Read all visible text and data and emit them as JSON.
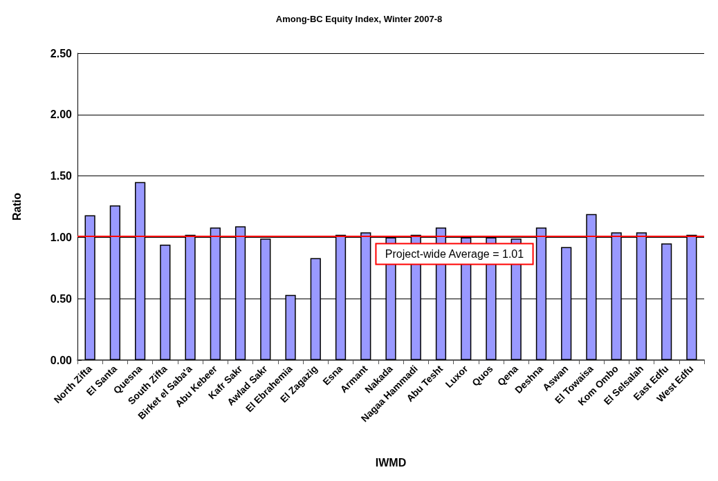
{
  "chart_data": {
    "type": "bar",
    "title": "Among-BC Equity Index, Winter 2007-8",
    "xlabel": "IWMD",
    "ylabel": "Ratio",
    "categories": [
      "North Zifta",
      "El Santa",
      "Quesna",
      "South Zifta",
      "Birket el Saba'a",
      "Abu Kebeer",
      "Kafr Sakr",
      "Awlad Sakr",
      "El Ebrahemia",
      "El Zagazig",
      "Esna",
      "Armant",
      "Nakada",
      "Nagaa Hammadi",
      "Abu Tesht",
      "Luxor",
      "Quos",
      "Qena",
      "Deshna",
      "Aswan",
      "El Towaisa",
      "Kom Ombo",
      "El Selsalah",
      "East Edfu",
      "West Edfu"
    ],
    "values": [
      1.18,
      1.26,
      1.45,
      0.94,
      1.02,
      1.08,
      1.09,
      0.99,
      0.53,
      0.83,
      1.02,
      1.04,
      1.0,
      1.02,
      1.08,
      1.0,
      1.0,
      0.99,
      1.08,
      0.92,
      1.19,
      1.04,
      1.04,
      0.95,
      1.02
    ],
    "color": "#9999ff",
    "ylim": [
      0,
      2.5
    ],
    "yticks": [
      {
        "value": 0,
        "label": "0.00"
      },
      {
        "value": 0.5,
        "label": "0.50"
      },
      {
        "value": 1,
        "label": "1.00"
      },
      {
        "value": 1.5,
        "label": "1.50"
      },
      {
        "value": 2,
        "label": "2.00"
      },
      {
        "value": 2.5,
        "label": "2.50"
      }
    ],
    "grid": "y",
    "ref_lines": [
      {
        "axis": "y",
        "value": 1.01,
        "label": "Project-wide Average = 1.01",
        "color": "#ff0000"
      }
    ]
  }
}
